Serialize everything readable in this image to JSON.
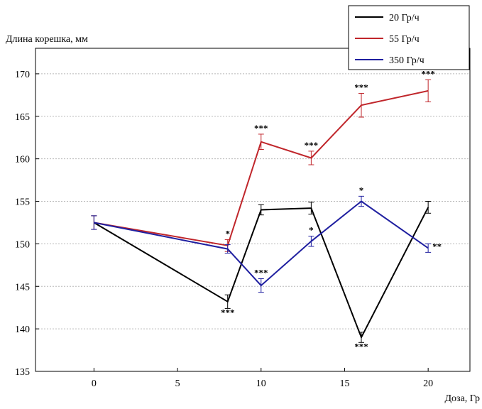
{
  "chart_data": {
    "type": "line",
    "title": "",
    "ylabel": "Длина корешка, мм",
    "xlabel": "Доза, Гр",
    "xlim": [
      -3.5,
      22.5
    ],
    "ylim": [
      135,
      173
    ],
    "xticks": [
      0,
      5,
      10,
      15,
      20
    ],
    "yticks": [
      135,
      140,
      145,
      150,
      155,
      160,
      165,
      170
    ],
    "grid": "horizontal dashed",
    "legend_position": "top-right",
    "series": [
      {
        "name": "20 Гр/ч",
        "color": "#000000",
        "x": [
          0,
          8,
          10,
          13,
          16,
          20
        ],
        "y": [
          152.5,
          143.2,
          154.0,
          154.2,
          139.0,
          154.3
        ],
        "err": [
          0.8,
          0.8,
          0.6,
          0.7,
          0.6,
          0.7
        ],
        "sig": [
          "",
          "***",
          "",
          "",
          "***",
          ""
        ],
        "sig_pos": [
          "",
          "below",
          "",
          "",
          "below",
          ""
        ]
      },
      {
        "name": "55 Гр/ч",
        "color": "#c0262b",
        "x": [
          0,
          8,
          10,
          13,
          16,
          20
        ],
        "y": [
          152.5,
          149.8,
          162.0,
          160.1,
          166.3,
          168.0
        ],
        "err": [
          0.8,
          0.7,
          0.9,
          0.8,
          1.4,
          1.3
        ],
        "sig": [
          "",
          "*",
          "***",
          "***",
          "***",
          "***"
        ],
        "sig_pos": [
          "",
          "above",
          "above",
          "above",
          "above",
          "above"
        ]
      },
      {
        "name": "350 Гр/ч",
        "color": "#1f1fa0",
        "x": [
          0,
          8,
          10,
          13,
          16,
          20
        ],
        "y": [
          152.5,
          149.4,
          145.1,
          150.3,
          155.0,
          149.5
        ],
        "err": [
          0.8,
          0.5,
          0.8,
          0.6,
          0.6,
          0.5
        ],
        "sig": [
          "",
          "",
          "***",
          "*",
          "*",
          "**"
        ],
        "sig_pos": [
          "",
          "",
          "above",
          "above",
          "above",
          "right"
        ]
      }
    ]
  }
}
